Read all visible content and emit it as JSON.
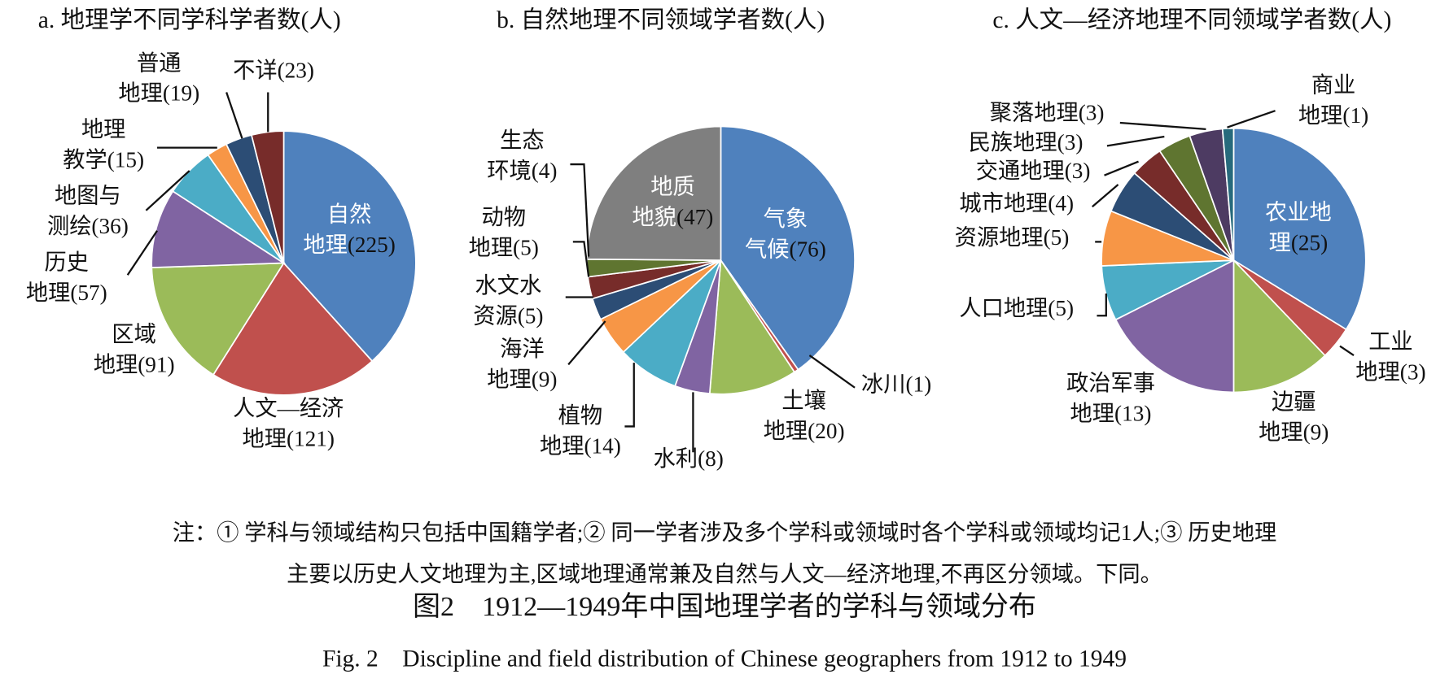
{
  "chart_data": [
    {
      "type": "pie",
      "title": "a. 地理学不同学科学者数(人)",
      "categories": [
        "自然地理",
        "人文—经济地理",
        "区域地理",
        "历史地理",
        "地图与测绘",
        "地理教学",
        "普通地理",
        "不详"
      ],
      "values": [
        225,
        121,
        91,
        57,
        36,
        15,
        19,
        23
      ],
      "value_labels": [
        "(225)",
        "(121)",
        "(91)",
        "(57)",
        "(36)",
        "(15)",
        "(19)",
        "(23)"
      ],
      "colors": [
        "#4f81bd",
        "#c0504d",
        "#9bbb59",
        "#8064a2",
        "#4bacc6",
        "#f79646",
        "#2c4d75",
        "#772c2a"
      ]
    },
    {
      "type": "pie",
      "title": "b. 自然地理不同领域学者数(人)",
      "categories": [
        "气象气候",
        "冰川",
        "土壤地理",
        "水利",
        "植物地理",
        "海洋地理",
        "水文水资源",
        "动物地理",
        "生态环境",
        "地质地貌"
      ],
      "values": [
        76,
        1,
        20,
        8,
        14,
        9,
        5,
        5,
        4,
        47
      ],
      "value_labels": [
        "(76)",
        "(1)",
        "(20)",
        "(8)",
        "(14)",
        "(9)",
        "(5)",
        "(5)",
        "(4)",
        "(47)"
      ],
      "colors": [
        "#4f81bd",
        "#c0504d",
        "#9bbb59",
        "#8064a2",
        "#4bacc6",
        "#f79646",
        "#2c4d75",
        "#772c2a",
        "#5f7530",
        "#7f7f7f"
      ]
    },
    {
      "type": "pie",
      "title": "c. 人文—经济地理不同领域学者数(人)",
      "categories": [
        "农业地理",
        "工业地理",
        "边疆地理",
        "政治军事地理",
        "人口地理",
        "资源地理",
        "城市地理",
        "交通地理",
        "民族地理",
        "聚落地理",
        "商业地理"
      ],
      "values": [
        25,
        3,
        9,
        13,
        5,
        5,
        4,
        3,
        3,
        3,
        1
      ],
      "value_labels": [
        "(25)",
        "(3)",
        "(9)",
        "(13)",
        "(5)",
        "(5)",
        "(4)",
        "(3)",
        "(3)",
        "(3)",
        "(1)"
      ],
      "colors": [
        "#4f81bd",
        "#c0504d",
        "#9bbb59",
        "#8064a2",
        "#4bacc6",
        "#f79646",
        "#2c4d75",
        "#772c2a",
        "#5f7530",
        "#4d3b62",
        "#276a7c"
      ]
    }
  ],
  "notes": [
    "注：① 学科与领域结构只包括中国籍学者;② 同一学者涉及多个学科或领域时各个学科或领域均记1人;③ 历史地理",
    "主要以历史人文地理为主,区域地理通常兼及自然与人文—经济地理,不再区分领域。下同。"
  ],
  "caption": "图2　1912—1949年中国地理学者的学科与领域分布",
  "caption_en": "Fig. 2　Discipline and field distribution of Chinese geographers from 1912 to 1949"
}
